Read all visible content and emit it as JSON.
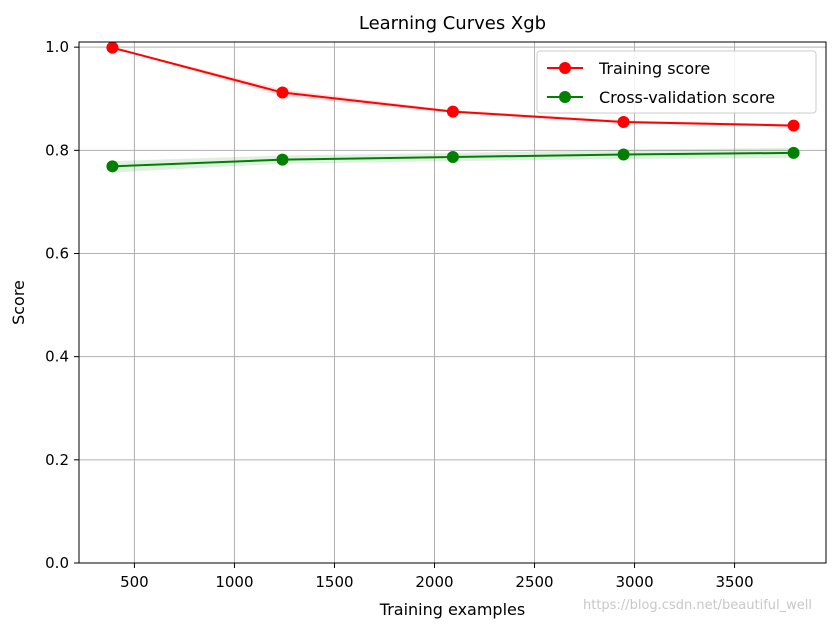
{
  "chart_data": {
    "type": "line",
    "title": "Learning Curves Xgb",
    "xlabel": "Training examples",
    "ylabel": "Score",
    "xlim": [
      223,
      3957
    ],
    "ylim": [
      0.0,
      1.01
    ],
    "xticks": [
      500,
      1000,
      1500,
      2000,
      2500,
      3000,
      3500
    ],
    "xtick_labels": [
      "500",
      "1000",
      "1500",
      "2000",
      "2500",
      "3000",
      "3500"
    ],
    "yticks": [
      0.0,
      0.2,
      0.4,
      0.6,
      0.8,
      1.0
    ],
    "ytick_labels": [
      "0.0",
      "0.2",
      "0.4",
      "0.6",
      "0.8",
      "1.0"
    ],
    "grid": true,
    "legend_position": "top-right",
    "x": [
      390,
      1240,
      2092,
      2945,
      3795
    ],
    "series": [
      {
        "name": "Training score",
        "color": "#ff0000",
        "values": [
          0.999,
          0.912,
          0.875,
          0.855,
          0.848
        ],
        "band_lower": [
          0.998,
          0.905,
          0.872,
          0.852,
          0.845
        ],
        "band_upper": [
          1.0,
          0.918,
          0.878,
          0.858,
          0.851
        ]
      },
      {
        "name": "Cross-validation score",
        "color": "#008000",
        "values": [
          0.769,
          0.782,
          0.787,
          0.792,
          0.795
        ],
        "band_lower": [
          0.757,
          0.774,
          0.779,
          0.783,
          0.785
        ],
        "band_upper": [
          0.779,
          0.79,
          0.795,
          0.801,
          0.805
        ]
      }
    ]
  },
  "watermark": "https://blog.csdn.net/beautiful_well"
}
